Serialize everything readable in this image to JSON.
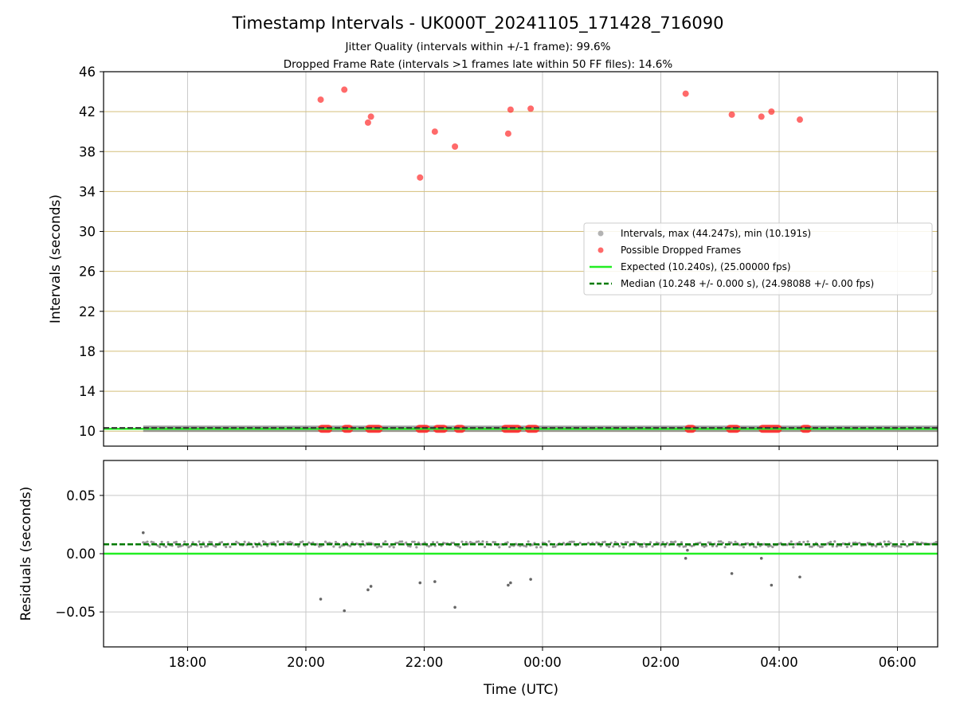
{
  "chart_data": {
    "title": "Timestamp Intervals - UK000T_20241105_171428_716090",
    "subtitles": [
      "Jitter Quality (intervals within +/-1 frame): 99.6%",
      "Dropped Frame Rate (intervals >1 frames late within 50 FF files): 14.6%"
    ],
    "xlabel": "Time (UTC)",
    "x_ticks": [
      "18:00",
      "20:00",
      "22:00",
      "00:00",
      "02:00",
      "04:00",
      "06:00"
    ],
    "x_tick_hours": [
      18,
      20,
      22,
      24,
      26,
      28,
      30
    ],
    "xlim_hours": [
      16.58,
      30.68
    ],
    "data_start_hour": 17.25,
    "data_end_hour": 30.68,
    "colors": {
      "intervals": "#808080",
      "dropped": "#ff2b2b",
      "expected": "#22ee22",
      "median": "#007a00",
      "top_grid": "#d4bf7a",
      "grid": "#c8c8c8"
    },
    "panels": [
      {
        "type": "scatter",
        "ylabel": "Intervals (seconds)",
        "ylim": [
          8.5,
          46
        ],
        "y_ticks": [
          10,
          14,
          18,
          22,
          26,
          30,
          34,
          38,
          42,
          46
        ],
        "legend": {
          "position": "center-right",
          "entries": [
            "Intervals, max (44.247s), min (10.191s)",
            "Possible Dropped Frames",
            "Expected (10.240s), (25.00000 fps)",
            "Median (10.248 +/- 0.000 s), (24.98088 +/- 0.00 fps)"
          ]
        },
        "expected": 10.24,
        "median": 10.248,
        "dropped_frames": [
          [
            20.25,
            43.2
          ],
          [
            20.65,
            44.2
          ],
          [
            21.05,
            40.9
          ],
          [
            21.1,
            41.5
          ],
          [
            21.93,
            35.4
          ],
          [
            22.18,
            40.0
          ],
          [
            22.52,
            38.5
          ],
          [
            23.42,
            39.8
          ],
          [
            23.46,
            42.2
          ],
          [
            23.8,
            42.3
          ],
          [
            26.42,
            43.8
          ],
          [
            27.2,
            41.7
          ],
          [
            27.7,
            41.5
          ],
          [
            27.87,
            42.0
          ],
          [
            28.35,
            41.2
          ]
        ],
        "dropped_clusters_at_baseline": [
          [
            20.2,
            20.45
          ],
          [
            20.6,
            20.8
          ],
          [
            21.0,
            21.3
          ],
          [
            21.85,
            22.1
          ],
          [
            22.15,
            22.4
          ],
          [
            22.5,
            22.7
          ],
          [
            23.3,
            23.65
          ],
          [
            23.7,
            23.95
          ],
          [
            26.4,
            26.6
          ],
          [
            27.1,
            27.35
          ],
          [
            27.65,
            28.05
          ],
          [
            28.35,
            28.55
          ]
        ]
      },
      {
        "type": "scatter",
        "ylabel": "Residuals (seconds)",
        "ylim": [
          -0.08,
          0.08
        ],
        "y_ticks": [
          0.05,
          0.0,
          -0.05
        ],
        "y_tick_labels": [
          "0.05",
          "0.00",
          "−0.05"
        ],
        "expected": 0.0,
        "median": 0.008,
        "outliers": [
          [
            17.25,
            0.018
          ],
          [
            20.25,
            -0.039
          ],
          [
            20.65,
            -0.049
          ],
          [
            21.05,
            -0.031
          ],
          [
            21.1,
            -0.028
          ],
          [
            21.93,
            -0.025
          ],
          [
            22.18,
            -0.024
          ],
          [
            22.52,
            -0.046
          ],
          [
            23.42,
            -0.027
          ],
          [
            23.46,
            -0.025
          ],
          [
            23.8,
            -0.022
          ],
          [
            26.42,
            -0.004
          ],
          [
            26.45,
            0.003
          ],
          [
            27.2,
            -0.017
          ],
          [
            27.7,
            -0.004
          ],
          [
            27.87,
            -0.027
          ],
          [
            28.35,
            -0.02
          ]
        ]
      }
    ]
  }
}
